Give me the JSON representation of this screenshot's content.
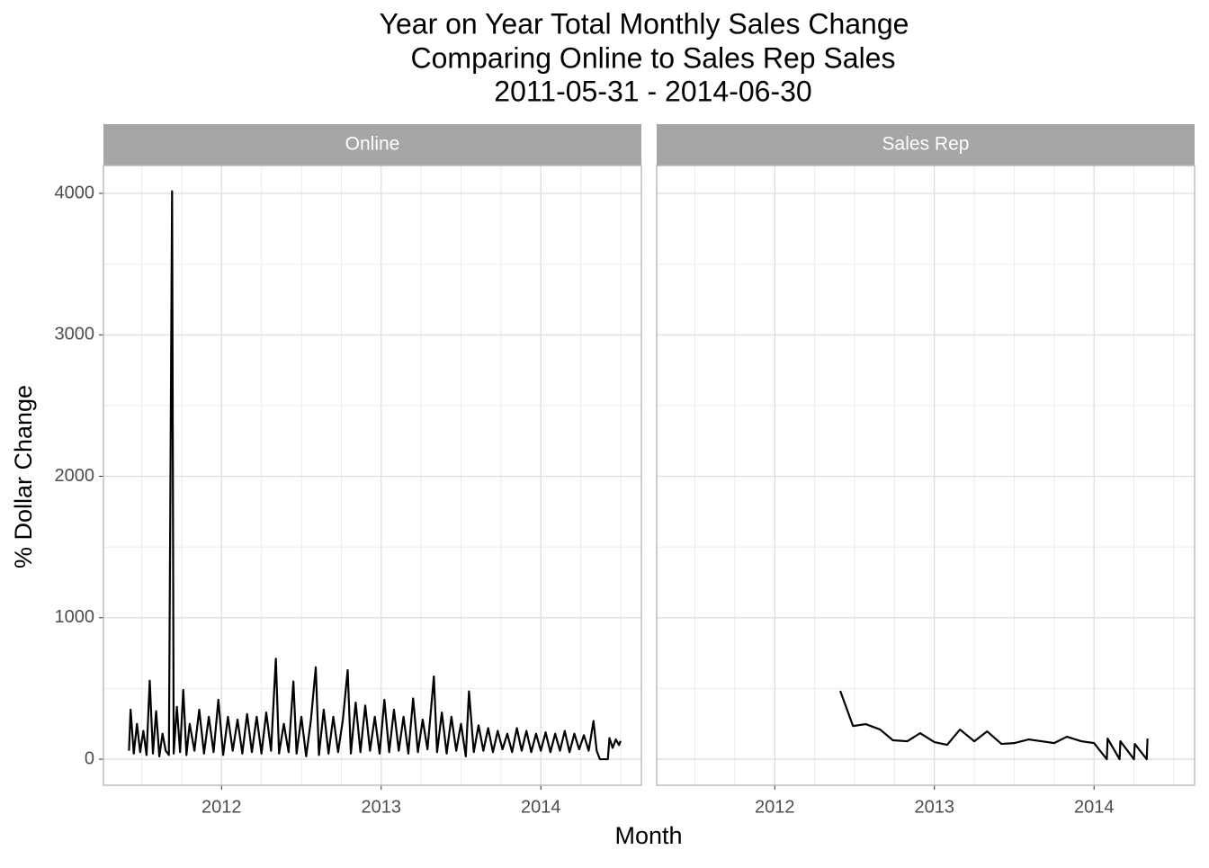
{
  "figure": {
    "title_lines": [
      "Year on Year Total Monthly Sales Change",
      "Comparing Online to Sales Rep Sales",
      "2011-05-31  -  2014-06-30"
    ],
    "x_label": "Month",
    "y_label": "% Dollar Change"
  },
  "chart_data": [
    {
      "type": "line",
      "title": "Online",
      "color": "#000000",
      "grid": true,
      "xlim": [
        2011.26,
        2014.63
      ],
      "ylim": [
        -184,
        4197
      ],
      "xticks": [
        2012,
        2013,
        2014
      ],
      "yticks": [
        0,
        1000,
        2000,
        3000,
        4000
      ],
      "x": [
        2011.42,
        2011.43,
        2011.45,
        2011.47,
        2011.49,
        2011.51,
        2011.53,
        2011.55,
        2011.57,
        2011.59,
        2011.61,
        2011.63,
        2011.65,
        2011.67,
        2011.69,
        2011.7,
        2011.72,
        2011.74,
        2011.76,
        2011.78,
        2011.8,
        2011.83,
        2011.86,
        2011.89,
        2011.92,
        2011.95,
        2011.98,
        2012.01,
        2012.04,
        2012.07,
        2012.1,
        2012.13,
        2012.16,
        2012.19,
        2012.22,
        2012.25,
        2012.28,
        2012.31,
        2012.34,
        2012.36,
        2012.39,
        2012.42,
        2012.45,
        2012.47,
        2012.5,
        2012.53,
        2012.56,
        2012.59,
        2012.61,
        2012.64,
        2012.67,
        2012.7,
        2012.73,
        2012.76,
        2012.79,
        2012.81,
        2012.84,
        2012.87,
        2012.9,
        2012.93,
        2012.96,
        2012.99,
        2013.02,
        2013.05,
        2013.08,
        2013.11,
        2013.14,
        2013.17,
        2013.2,
        2013.23,
        2013.26,
        2013.29,
        2013.33,
        2013.35,
        2013.38,
        2013.41,
        2013.44,
        2013.47,
        2013.5,
        2013.53,
        2013.55,
        2013.58,
        2013.61,
        2013.64,
        2013.67,
        2013.7,
        2013.73,
        2013.76,
        2013.79,
        2013.82,
        2013.85,
        2013.88,
        2013.91,
        2013.94,
        2013.97,
        2014.0,
        2014.03,
        2014.06,
        2014.09,
        2014.12,
        2014.15,
        2014.18,
        2014.21,
        2014.24,
        2014.27,
        2014.3,
        2014.33,
        2014.35,
        2014.37,
        2014.42,
        2014.43,
        2014.45,
        2014.47,
        2014.49,
        2014.5
      ],
      "values": [
        60,
        350,
        40,
        250,
        50,
        200,
        30,
        555,
        40,
        340,
        20,
        180,
        60,
        30,
        4015,
        40,
        370,
        50,
        490,
        30,
        250,
        60,
        350,
        40,
        300,
        50,
        420,
        30,
        300,
        60,
        280,
        40,
        320,
        50,
        300,
        40,
        330,
        60,
        710,
        40,
        250,
        50,
        550,
        40,
        300,
        20,
        280,
        650,
        30,
        350,
        40,
        300,
        50,
        280,
        630,
        40,
        400,
        50,
        380,
        60,
        300,
        40,
        420,
        50,
        350,
        60,
        300,
        40,
        430,
        50,
        280,
        70,
        585,
        50,
        330,
        40,
        300,
        60,
        250,
        20,
        480,
        50,
        240,
        60,
        220,
        50,
        200,
        70,
        180,
        50,
        220,
        60,
        200,
        50,
        180,
        60,
        190,
        50,
        180,
        60,
        200,
        50,
        180,
        70,
        170,
        60,
        270,
        60,
        0,
        0,
        150,
        80,
        140,
        100,
        130
      ]
    },
    {
      "type": "line",
      "title": "Sales Rep",
      "color": "#000000",
      "grid": true,
      "xlim": [
        2011.26,
        2014.63
      ],
      "ylim": [
        -184,
        4197
      ],
      "xticks": [
        2012,
        2013,
        2014
      ],
      "yticks": [
        0,
        1000,
        2000,
        3000,
        4000
      ],
      "x": [
        2012.41,
        2012.49,
        2012.57,
        2012.66,
        2012.74,
        2012.83,
        2012.91,
        2013.0,
        2013.08,
        2013.16,
        2013.25,
        2013.33,
        2013.42,
        2013.5,
        2013.59,
        2013.67,
        2013.75,
        2013.83,
        2013.92,
        2014.0,
        2014.08,
        2014.085,
        2014.16,
        2014.165,
        2014.25,
        2014.255,
        2014.33,
        2014.335
      ],
      "values": [
        483,
        235,
        248,
        210,
        134,
        127,
        184,
        121,
        102,
        210,
        127,
        197,
        108,
        114,
        140,
        127,
        114,
        159,
        127,
        114,
        0,
        146,
        0,
        127,
        0,
        108,
        0,
        146
      ]
    }
  ]
}
